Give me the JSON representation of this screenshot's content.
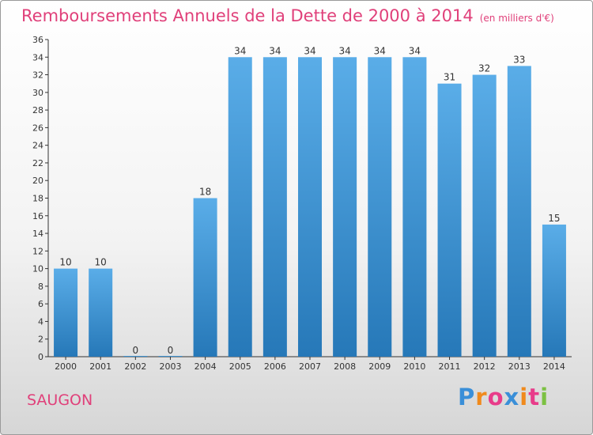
{
  "chart_data": {
    "type": "bar",
    "title": "Remboursements Annuels de la Dette de 2000 à 2014",
    "unit_note": "(en milliers d'€)",
    "categories": [
      "2000",
      "2001",
      "2002",
      "2003",
      "2004",
      "2005",
      "2006",
      "2007",
      "2008",
      "2009",
      "2010",
      "2011",
      "2012",
      "2013",
      "2014"
    ],
    "values": [
      10,
      10,
      0,
      0,
      18,
      34,
      34,
      34,
      34,
      34,
      34,
      31,
      32,
      33,
      15
    ],
    "ylim": [
      0,
      36
    ],
    "yticks": [
      0,
      2,
      4,
      6,
      8,
      10,
      12,
      14,
      16,
      18,
      20,
      22,
      24,
      26,
      28,
      30,
      32,
      34,
      36
    ],
    "xlabel": "",
    "ylabel": "",
    "grid": false,
    "bar_color_top": "#5aade8",
    "bar_color_bottom": "#2678b8"
  },
  "footer": {
    "place": "SAUGON",
    "brand_letters": [
      "P",
      "r",
      "o",
      "x",
      "i",
      "t",
      "i"
    ],
    "brand_colors": [
      "#3a8fd8",
      "#f08a1c",
      "#e83c8a",
      "#3a8fd8",
      "#f08a1c",
      "#e83c8a",
      "#7cc142"
    ]
  },
  "colors": {
    "accent": "#e0407a",
    "axis": "#333333"
  }
}
